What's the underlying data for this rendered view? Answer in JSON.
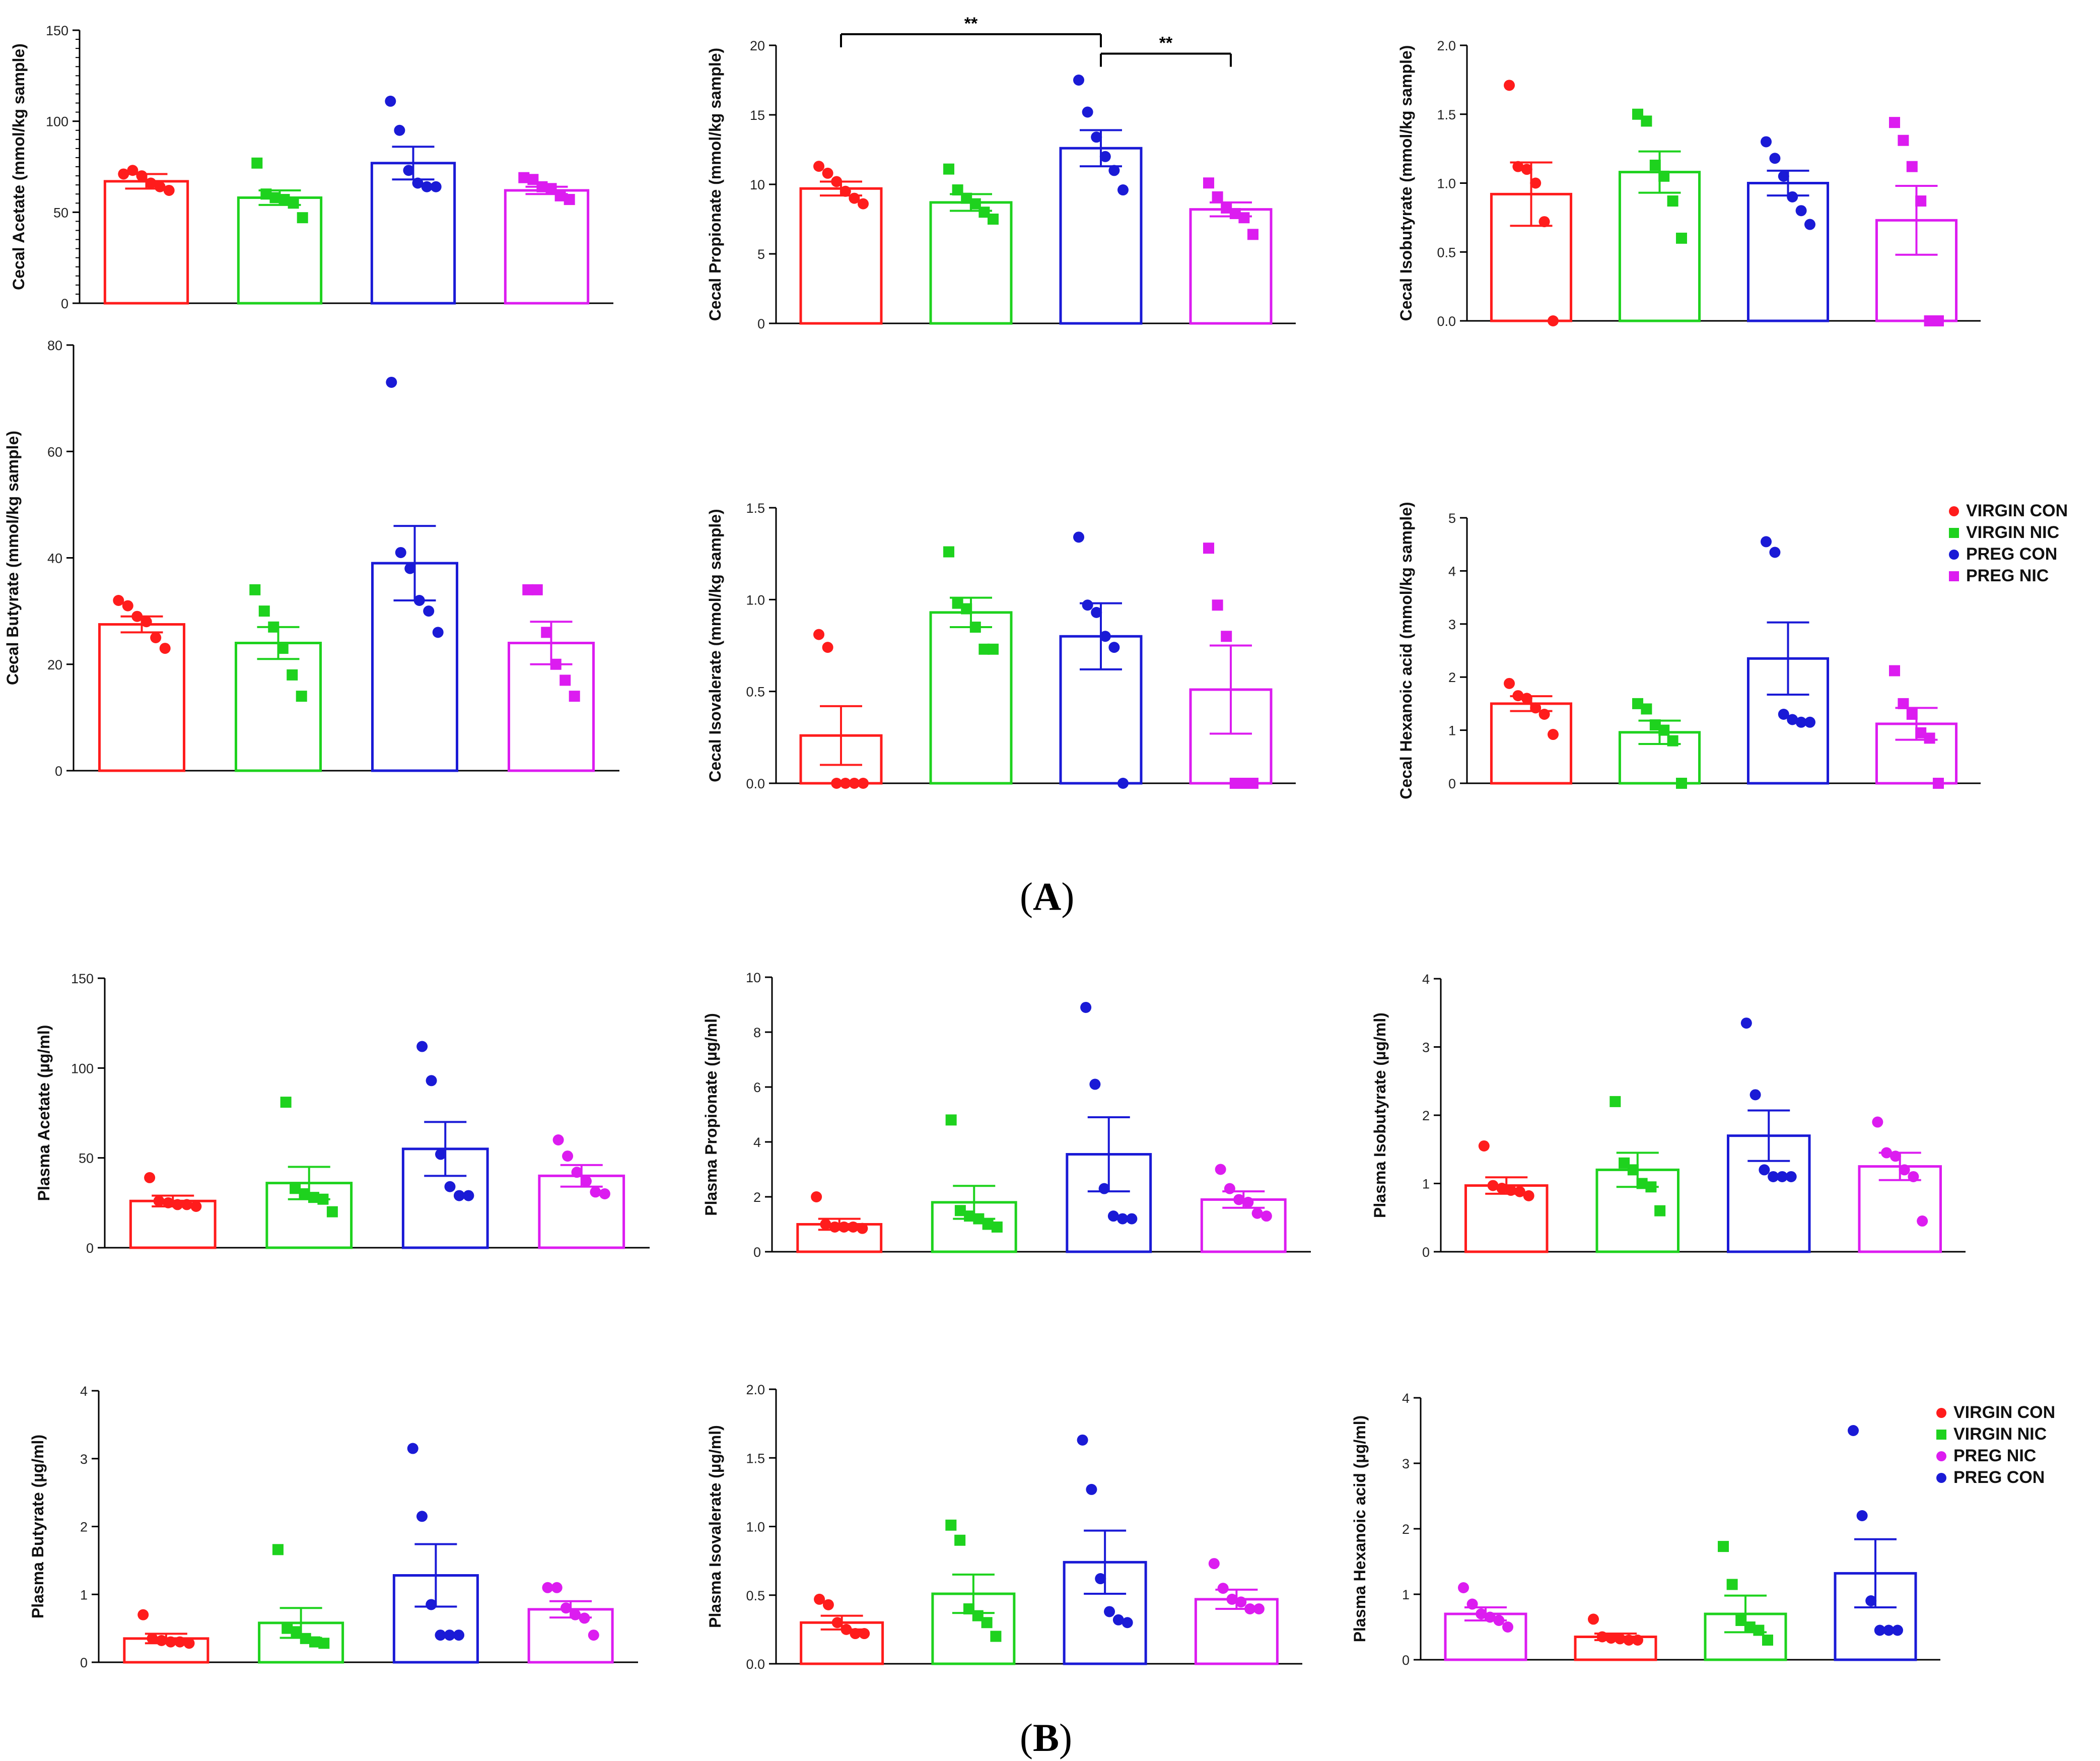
{
  "panel_labels": {
    "A": "A",
    "B": "B"
  },
  "colors": {
    "VIRGIN CON": "#ff1c1c",
    "VIRGIN NIC": "#1ed21e",
    "PREG CON": "#1a1ad6",
    "PREG NIC": "#dc1cf0"
  },
  "legends": {
    "A": [
      {
        "label": "VIRGIN CON",
        "group": "VIRGIN CON",
        "shape": "circle"
      },
      {
        "label": "VIRGIN NIC",
        "group": "VIRGIN NIC",
        "shape": "square"
      },
      {
        "label": "PREG CON",
        "group": "PREG CON",
        "shape": "circle"
      },
      {
        "label": "PREG NIC",
        "group": "PREG NIC",
        "shape": "square"
      }
    ],
    "B": [
      {
        "label": "VIRGIN CON",
        "group": "VIRGIN CON",
        "shape": "circle"
      },
      {
        "label": "VIRGIN NIC",
        "group": "VIRGIN NIC",
        "shape": "square"
      },
      {
        "label": "PREG NIC",
        "group": "PREG NIC",
        "shape": "circle"
      },
      {
        "label": "PREG CON",
        "group": "PREG CON",
        "shape": "circle"
      }
    ]
  },
  "chart_data": [
    {
      "id": "cecal-acetate",
      "type": "bar",
      "ylabel": "Cecal Acetate (mmol/kg sample)",
      "ylim": [
        0,
        150
      ],
      "ticks": [
        0,
        50,
        100,
        150
      ],
      "minor_ticks": 10,
      "groups": [
        {
          "name": "VIRGIN CON",
          "mean": 67,
          "sem": 4,
          "shape": "circle",
          "points": [
            71,
            73,
            70,
            66,
            64,
            62
          ]
        },
        {
          "name": "VIRGIN NIC",
          "mean": 58,
          "sem": 4,
          "shape": "square",
          "points": [
            77,
            60,
            58,
            57,
            55,
            47
          ]
        },
        {
          "name": "PREG CON",
          "mean": 77,
          "sem": 9,
          "shape": "circle",
          "points": [
            111,
            95,
            73,
            66,
            64,
            64
          ]
        },
        {
          "name": "PREG NIC",
          "mean": 62,
          "sem": 2,
          "shape": "square",
          "points": [
            69,
            68,
            64,
            63,
            59,
            57
          ]
        }
      ]
    },
    {
      "id": "cecal-propionate",
      "type": "bar",
      "ylabel": "Cecal Propionate (mmol/kg sample)",
      "ylim": [
        0,
        20
      ],
      "ticks": [
        0,
        5,
        10,
        15,
        20
      ],
      "minor_ticks": 0,
      "groups": [
        {
          "name": "VIRGIN CON",
          "mean": 9.7,
          "sem": 0.5,
          "shape": "circle",
          "points": [
            11.3,
            10.8,
            10.2,
            9.5,
            9.0,
            8.6
          ]
        },
        {
          "name": "VIRGIN NIC",
          "mean": 8.7,
          "sem": 0.6,
          "shape": "square",
          "points": [
            11.1,
            9.6,
            9.0,
            8.6,
            8.0,
            7.5
          ]
        },
        {
          "name": "PREG CON",
          "mean": 12.6,
          "sem": 1.3,
          "shape": "circle",
          "points": [
            17.5,
            15.2,
            13.4,
            12.0,
            11.0,
            9.6
          ]
        },
        {
          "name": "PREG NIC",
          "mean": 8.2,
          "sem": 0.5,
          "shape": "square",
          "points": [
            10.1,
            9.1,
            8.3,
            7.9,
            7.6,
            6.4
          ]
        }
      ],
      "significance": [
        {
          "from": 0,
          "to": 2,
          "level": 20.8,
          "label": "**"
        },
        {
          "from": 2,
          "to": 3,
          "level": 19.4,
          "label": "**"
        }
      ]
    },
    {
      "id": "cecal-isobutyrate",
      "type": "bar",
      "ylabel": "Cecal Isobutyrate (mmol/kg sample)",
      "ylim": [
        0,
        2.0
      ],
      "ticks": [
        0.0,
        0.5,
        1.0,
        1.5,
        2.0
      ],
      "minor_ticks": 0,
      "decimals": 1,
      "groups": [
        {
          "name": "VIRGIN CON",
          "mean": 0.92,
          "sem": 0.23,
          "shape": "circle",
          "points": [
            1.71,
            1.12,
            1.1,
            1.0,
            0.72,
            0.0
          ]
        },
        {
          "name": "VIRGIN NIC",
          "mean": 1.08,
          "sem": 0.15,
          "shape": "square",
          "points": [
            1.5,
            1.45,
            1.13,
            1.05,
            0.87,
            0.6
          ]
        },
        {
          "name": "PREG CON",
          "mean": 1.0,
          "sem": 0.09,
          "shape": "circle",
          "points": [
            1.3,
            1.18,
            1.05,
            0.9,
            0.8,
            0.7
          ]
        },
        {
          "name": "PREG NIC",
          "mean": 0.73,
          "sem": 0.25,
          "shape": "square",
          "points": [
            1.44,
            1.31,
            1.12,
            0.87,
            0.0,
            0.0
          ]
        }
      ]
    },
    {
      "id": "cecal-butyrate",
      "type": "bar",
      "ylabel": "Cecal Butyrate (mmol/kg sample)",
      "ylim": [
        0,
        80
      ],
      "ticks": [
        0,
        20,
        40,
        60,
        80
      ],
      "minor_ticks": 0,
      "groups": [
        {
          "name": "VIRGIN CON",
          "mean": 27.5,
          "sem": 1.5,
          "shape": "circle",
          "points": [
            32,
            31,
            29,
            28,
            25,
            23
          ]
        },
        {
          "name": "VIRGIN NIC",
          "mean": 24,
          "sem": 3,
          "shape": "square",
          "points": [
            34,
            30,
            27,
            23,
            18,
            14
          ]
        },
        {
          "name": "PREG CON",
          "mean": 39,
          "sem": 7,
          "shape": "circle",
          "points": [
            73,
            41,
            38,
            32,
            30,
            26
          ]
        },
        {
          "name": "PREG NIC",
          "mean": 24,
          "sem": 4,
          "shape": "square",
          "points": [
            34,
            34,
            26,
            20,
            17,
            14
          ]
        }
      ]
    },
    {
      "id": "cecal-isovalerate",
      "type": "bar",
      "ylabel": "Cecal Isovalerate (mmol/kg sample)",
      "ylim": [
        0,
        1.5
      ],
      "ticks": [
        0.0,
        0.5,
        1.0,
        1.5
      ],
      "minor_ticks": 0,
      "decimals": 1,
      "groups": [
        {
          "name": "VIRGIN CON",
          "mean": 0.26,
          "sem": 0.16,
          "shape": "circle",
          "points": [
            0.81,
            0.74,
            0.0,
            0.0,
            0.0,
            0.0
          ]
        },
        {
          "name": "VIRGIN NIC",
          "mean": 0.93,
          "sem": 0.08,
          "shape": "square",
          "points": [
            1.26,
            0.98,
            0.95,
            0.85,
            0.73,
            0.73
          ]
        },
        {
          "name": "PREG CON",
          "mean": 0.8,
          "sem": 0.18,
          "shape": "circle",
          "points": [
            1.34,
            0.97,
            0.93,
            0.8,
            0.74,
            0.0
          ]
        },
        {
          "name": "PREG NIC",
          "mean": 0.51,
          "sem": 0.24,
          "shape": "square",
          "points": [
            1.28,
            0.97,
            0.8,
            0.0,
            0.0,
            0.0
          ]
        }
      ]
    },
    {
      "id": "cecal-hexanoic",
      "type": "bar",
      "ylabel": "Cecal Hexanoic acid (mmol/kg sample)",
      "ylim": [
        0,
        5
      ],
      "ticks": [
        0,
        1,
        2,
        3,
        4,
        5
      ],
      "minor_ticks": 0,
      "groups": [
        {
          "name": "VIRGIN CON",
          "mean": 1.5,
          "sem": 0.14,
          "shape": "circle",
          "points": [
            1.88,
            1.65,
            1.6,
            1.42,
            1.3,
            0.92
          ]
        },
        {
          "name": "VIRGIN NIC",
          "mean": 0.96,
          "sem": 0.22,
          "shape": "square",
          "points": [
            1.5,
            1.4,
            1.1,
            1.0,
            0.8,
            0.0
          ]
        },
        {
          "name": "PREG CON",
          "mean": 2.35,
          "sem": 0.68,
          "shape": "circle",
          "points": [
            4.55,
            4.35,
            1.3,
            1.2,
            1.15,
            1.15
          ]
        },
        {
          "name": "PREG NIC",
          "mean": 1.12,
          "sem": 0.3,
          "shape": "square",
          "points": [
            2.12,
            1.5,
            1.3,
            0.95,
            0.85,
            0.0
          ]
        }
      ]
    },
    {
      "id": "plasma-acetate",
      "type": "bar",
      "ylabel": "Plasma Acetate (µg/ml)",
      "ylim": [
        0,
        150
      ],
      "ticks": [
        0,
        50,
        100,
        150
      ],
      "minor_ticks": 0,
      "groups": [
        {
          "name": "VIRGIN CON",
          "mean": 26,
          "sem": 3,
          "shape": "circle",
          "points": [
            39,
            26,
            25,
            24,
            24,
            23
          ]
        },
        {
          "name": "VIRGIN NIC",
          "mean": 36,
          "sem": 9,
          "shape": "square",
          "points": [
            81,
            33,
            30,
            28,
            27,
            20
          ]
        },
        {
          "name": "PREG CON",
          "mean": 55,
          "sem": 15,
          "shape": "circle",
          "points": [
            112,
            93,
            52,
            34,
            29,
            29
          ]
        },
        {
          "name": "PREG NIC",
          "mean": 40,
          "sem": 6,
          "shape": "circle",
          "points": [
            60,
            51,
            42,
            37,
            31,
            30
          ]
        }
      ]
    },
    {
      "id": "plasma-propionate",
      "type": "bar",
      "ylabel": "Plasma Propionate (µg/ml)",
      "ylim": [
        0,
        10
      ],
      "ticks": [
        0,
        2,
        4,
        6,
        8,
        10
      ],
      "minor_ticks": 0,
      "groups": [
        {
          "name": "VIRGIN CON",
          "mean": 1.0,
          "sem": 0.2,
          "shape": "circle",
          "points": [
            2.0,
            1.0,
            0.9,
            0.9,
            0.9,
            0.85
          ]
        },
        {
          "name": "VIRGIN NIC",
          "mean": 1.8,
          "sem": 0.6,
          "shape": "square",
          "points": [
            4.8,
            1.5,
            1.3,
            1.2,
            1.0,
            0.9
          ]
        },
        {
          "name": "PREG CON",
          "mean": 3.55,
          "sem": 1.35,
          "shape": "circle",
          "points": [
            8.9,
            6.1,
            2.3,
            1.3,
            1.2,
            1.2
          ]
        },
        {
          "name": "PREG NIC",
          "mean": 1.9,
          "sem": 0.3,
          "shape": "circle",
          "points": [
            3.0,
            2.3,
            1.9,
            1.8,
            1.4,
            1.3
          ]
        }
      ]
    },
    {
      "id": "plasma-isobutyrate",
      "type": "bar",
      "ylabel": "Plasma Isobutyrate (µg/ml)",
      "ylim": [
        0,
        4
      ],
      "ticks": [
        0,
        1,
        2,
        3,
        4
      ],
      "minor_ticks": 0,
      "groups": [
        {
          "name": "VIRGIN CON",
          "mean": 0.97,
          "sem": 0.12,
          "shape": "circle",
          "points": [
            1.55,
            0.97,
            0.93,
            0.9,
            0.88,
            0.82
          ]
        },
        {
          "name": "VIRGIN NIC",
          "mean": 1.2,
          "sem": 0.25,
          "shape": "square",
          "points": [
            2.2,
            1.3,
            1.2,
            1.0,
            0.95,
            0.6
          ]
        },
        {
          "name": "PREG CON",
          "mean": 1.7,
          "sem": 0.37,
          "shape": "circle",
          "points": [
            3.35,
            2.3,
            1.2,
            1.1,
            1.1,
            1.1
          ]
        },
        {
          "name": "PREG NIC",
          "mean": 1.25,
          "sem": 0.2,
          "shape": "circle",
          "points": [
            1.9,
            1.45,
            1.4,
            1.2,
            1.1,
            0.45
          ]
        }
      ]
    },
    {
      "id": "plasma-butyrate",
      "type": "bar",
      "ylabel": "Plasma Butyrate (µg/ml)",
      "ylim": [
        0,
        4
      ],
      "ticks": [
        0,
        1,
        2,
        3,
        4
      ],
      "minor_ticks": 0,
      "groups": [
        {
          "name": "VIRGIN CON",
          "mean": 0.35,
          "sem": 0.07,
          "shape": "circle",
          "points": [
            0.7,
            0.35,
            0.32,
            0.3,
            0.3,
            0.28
          ]
        },
        {
          "name": "VIRGIN NIC",
          "mean": 0.58,
          "sem": 0.22,
          "shape": "square",
          "points": [
            1.66,
            0.5,
            0.45,
            0.35,
            0.3,
            0.28
          ]
        },
        {
          "name": "PREG CON",
          "mean": 1.28,
          "sem": 0.46,
          "shape": "circle",
          "points": [
            3.15,
            2.15,
            0.85,
            0.4,
            0.4,
            0.4
          ]
        },
        {
          "name": "PREG NIC",
          "mean": 0.78,
          "sem": 0.12,
          "shape": "circle",
          "points": [
            1.1,
            1.1,
            0.8,
            0.7,
            0.65,
            0.4
          ]
        }
      ]
    },
    {
      "id": "plasma-isovalerate",
      "type": "bar",
      "ylabel": "Plasma Isovalerate (µg/ml)",
      "ylim": [
        0,
        2.0
      ],
      "ticks": [
        0.0,
        0.5,
        1.0,
        1.5,
        2.0
      ],
      "minor_ticks": 0,
      "decimals": 1,
      "groups": [
        {
          "name": "VIRGIN CON",
          "mean": 0.3,
          "sem": 0.05,
          "shape": "circle",
          "points": [
            0.47,
            0.43,
            0.3,
            0.25,
            0.22,
            0.22
          ]
        },
        {
          "name": "VIRGIN NIC",
          "mean": 0.51,
          "sem": 0.14,
          "shape": "square",
          "points": [
            1.01,
            0.9,
            0.4,
            0.35,
            0.3,
            0.2
          ]
        },
        {
          "name": "PREG CON",
          "mean": 0.74,
          "sem": 0.23,
          "shape": "circle",
          "points": [
            1.63,
            1.27,
            0.62,
            0.38,
            0.32,
            0.3
          ]
        },
        {
          "name": "PREG NIC",
          "mean": 0.47,
          "sem": 0.07,
          "shape": "circle",
          "points": [
            0.73,
            0.55,
            0.47,
            0.45,
            0.4,
            0.4
          ]
        }
      ]
    },
    {
      "id": "plasma-hexanoic",
      "type": "bar",
      "ylabel": "Plasma Hexanoic acid (µg/ml)",
      "ylim": [
        0,
        4
      ],
      "ticks": [
        0,
        1,
        2,
        3,
        4
      ],
      "minor_ticks": 0,
      "groups": [
        {
          "name": "PREG NIC",
          "mean": 0.7,
          "sem": 0.1,
          "shape": "circle",
          "points": [
            1.1,
            0.85,
            0.7,
            0.65,
            0.6,
            0.5
          ]
        },
        {
          "name": "VIRGIN CON",
          "mean": 0.35,
          "sem": 0.05,
          "shape": "circle",
          "points": [
            0.62,
            0.35,
            0.33,
            0.32,
            0.3,
            0.3
          ]
        },
        {
          "name": "VIRGIN NIC",
          "mean": 0.7,
          "sem": 0.28,
          "shape": "square",
          "points": [
            1.73,
            1.15,
            0.6,
            0.5,
            0.45,
            0.3
          ]
        },
        {
          "name": "PREG CON",
          "mean": 1.32,
          "sem": 0.52,
          "shape": "circle",
          "points": [
            3.5,
            2.2,
            0.9,
            0.45,
            0.45,
            0.45
          ]
        }
      ]
    }
  ]
}
